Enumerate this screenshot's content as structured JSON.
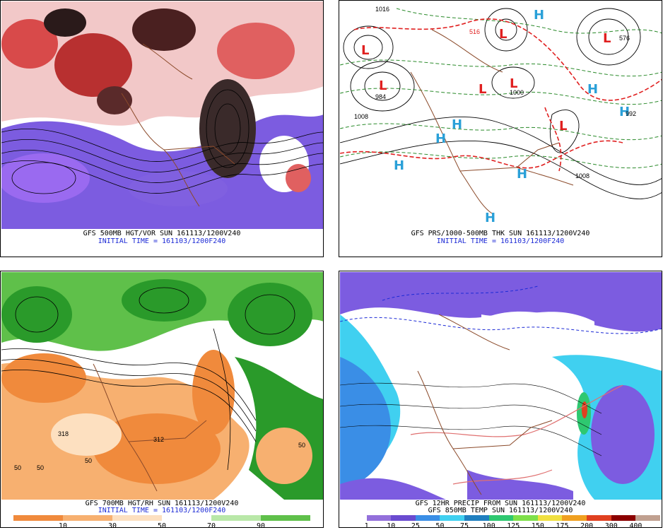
{
  "panels": [
    {
      "caption": "GFS 500MB HGT/VOR SUN 161113/1200V240",
      "init": "INITIAL TIME = 161103/1200F240"
    },
    {
      "caption": "GFS PRS/1000-500MB THK SUN 161113/1200V240",
      "init": "INITIAL TIME = 161103/1200F240",
      "labels": {
        "low": "L",
        "high": "H",
        "values": [
          "1016",
          "516",
          "984",
          "1008",
          "1000",
          "1008",
          "992",
          "576"
        ]
      }
    },
    {
      "caption": "GFS 700MB HGT/RH SUN 161113/1200V240",
      "init": "INITIAL TIME = 161103/1200F240",
      "colorbar": [
        "10",
        "30",
        "50",
        "70",
        "90"
      ],
      "labels": [
        "318",
        "312",
        "50",
        "50",
        "50",
        "50"
      ]
    },
    {
      "caption": "GFS 12HR PRECIP FROM SUN 161113/1200V240",
      "caption2": "GFS 850MB TEMP SUN 161113/1200V240",
      "colorbar": [
        "1",
        "10",
        "25",
        "50",
        "75",
        "100",
        "125",
        "150",
        "175",
        "200",
        "300",
        "400"
      ]
    }
  ],
  "colors": {
    "rh": [
      "#f08a3c",
      "#f7b070",
      "#fde0c0",
      "#ffffff",
      "#b9e8a8",
      "#5fc04a",
      "#2a9a2a"
    ],
    "precip": [
      "#ffffff",
      "#9370db",
      "#6a4bd0",
      "#3a8ee6",
      "#40d0f0",
      "#1f7fbf",
      "#2ec870",
      "#7fe04a",
      "#f0e040",
      "#f0a020",
      "#e04020",
      "#8b0000",
      "#c0a090"
    ]
  }
}
